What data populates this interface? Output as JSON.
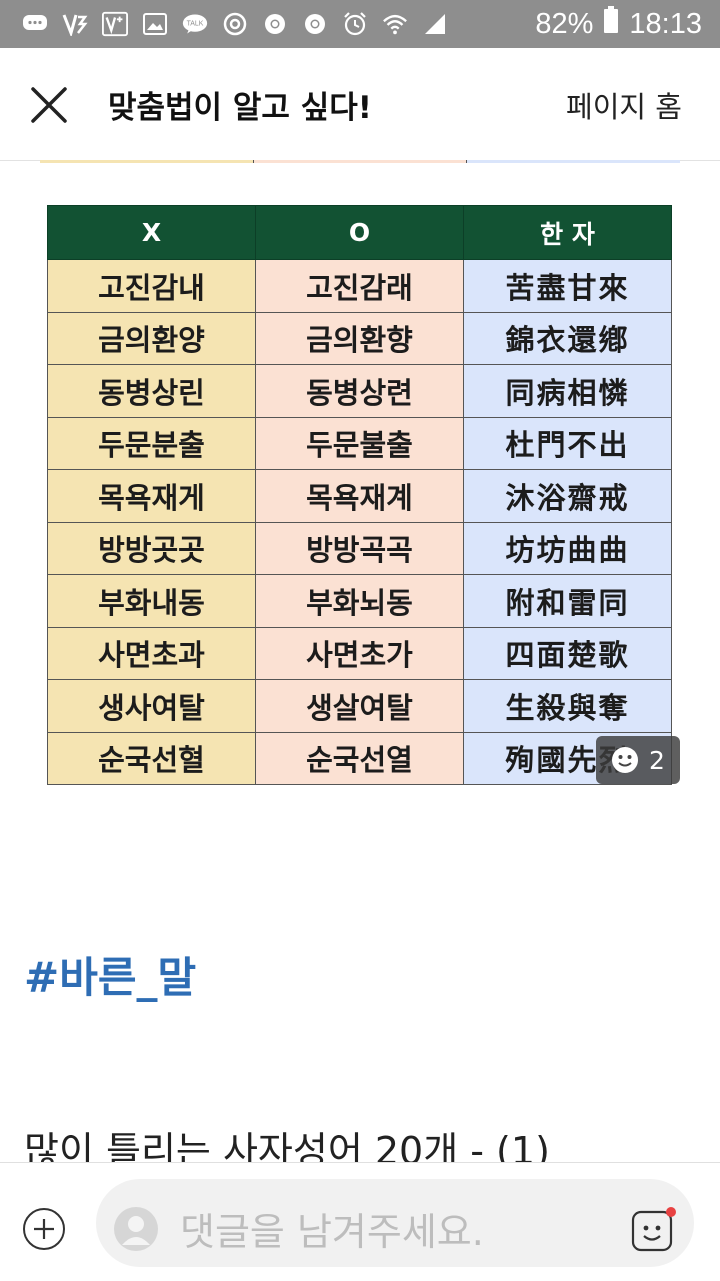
{
  "status_bar": {
    "battery_percent": "82%",
    "time": "18:13",
    "talk_label": "TALK"
  },
  "header": {
    "title": "맞춤법이 알고 싶다!",
    "home_label": "페이지 홈"
  },
  "table": {
    "headers": [
      "X",
      "O",
      "한 자"
    ],
    "rows": [
      [
        "고진감내",
        "고진감래",
        "苦盡甘來"
      ],
      [
        "금의환양",
        "금의환향",
        "錦衣還鄕"
      ],
      [
        "동병상린",
        "동병상련",
        "同病相憐"
      ],
      [
        "두문분출",
        "두문불출",
        "杜門不出"
      ],
      [
        "목욕재게",
        "목욕재계",
        "沐浴齋戒"
      ],
      [
        "방방곳곳",
        "방방곡곡",
        "坊坊曲曲"
      ],
      [
        "부화내동",
        "부화뇌동",
        "附和雷同"
      ],
      [
        "사면초과",
        "사면초가",
        "四面楚歌"
      ],
      [
        "생사여탈",
        "생살여탈",
        "生殺與奪"
      ],
      [
        "순국선혈",
        "순국선열",
        "殉國先烈"
      ]
    ]
  },
  "comment_badge": {
    "count": "2"
  },
  "hashtag": "#바른_말",
  "next_post_title": "많이 틀리는 사자성어 20개 - (1)",
  "comment_bar": {
    "placeholder": "댓글을 남겨주세요."
  },
  "colors": {
    "header_green": "#125233",
    "col_x": "#f5e4b2",
    "col_o": "#fbe1d3",
    "col_hanja": "#dae5fb",
    "hashtag": "#2e6db4"
  }
}
